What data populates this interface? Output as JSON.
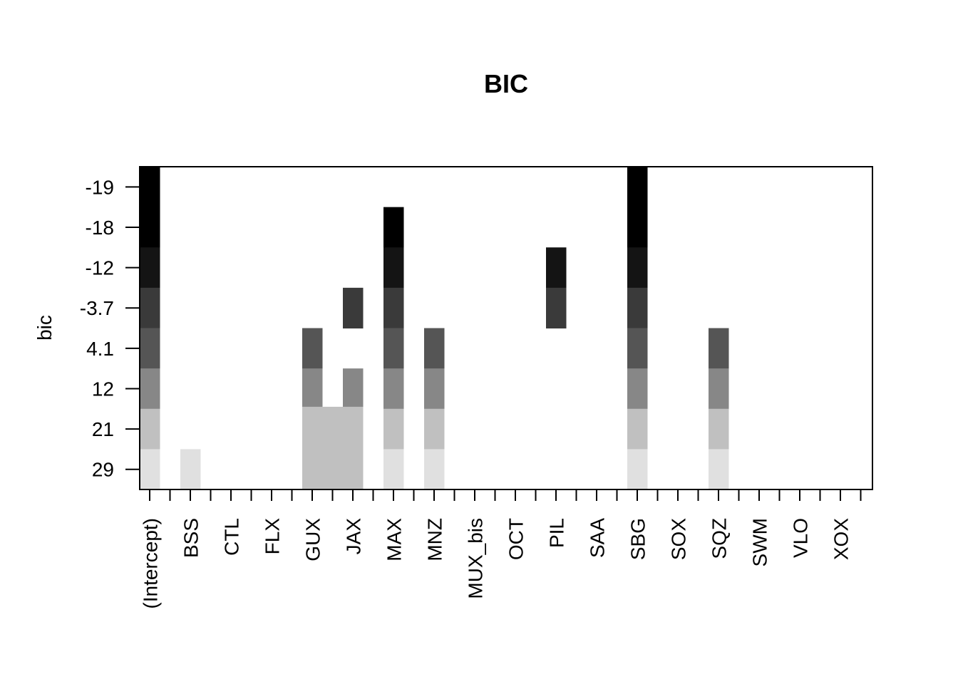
{
  "chart_data": {
    "type": "heatmap",
    "title": "BIC",
    "ylabel": "bic",
    "xlabel": "",
    "columns": [
      "(Intercept)",
      "BSS",
      "CTL",
      "FLX",
      "GUX",
      "JAX",
      "MAX",
      "MNZ",
      "MUX_bis",
      "OCT",
      "PIL",
      "SAA",
      "SBG",
      "SOX",
      "SQZ",
      "SWM",
      "VLO",
      "XOX"
    ],
    "rows": [
      "-19",
      "-18",
      "-12",
      "-3.7",
      "4.1",
      "12",
      "21",
      "29"
    ],
    "row_values": [
      -19,
      -18,
      -12,
      -3.7,
      4.1,
      12,
      21,
      29
    ],
    "cell_colors": [
      "#000000",
      "#000000",
      "#141414",
      "#3a3a3a",
      "#555555",
      "#878787",
      "#c0c0c0",
      "#e0e0e0"
    ],
    "cells": [
      {
        "column": "(Intercept)",
        "from_row": 0,
        "to_row": 7
      },
      {
        "column": "BSS",
        "from_row": 7,
        "to_row": 7
      },
      {
        "column": "GUX",
        "from_row": 4,
        "to_row": 7
      },
      {
        "column": "JAX",
        "from_row": 3,
        "to_row": 3
      },
      {
        "column": "JAX",
        "from_row": 5,
        "to_row": 7
      },
      {
        "column": "MAX",
        "from_row": 1,
        "to_row": 7
      },
      {
        "column": "MNZ",
        "from_row": 4,
        "to_row": 7
      },
      {
        "column": "PIL",
        "from_row": 2,
        "to_row": 3
      },
      {
        "column": "SBG",
        "from_row": 0,
        "to_row": 7
      },
      {
        "column": "SQZ",
        "from_row": 4,
        "to_row": 7
      }
    ],
    "ragged_fills": [
      {
        "columns": [
          "GUX",
          "JAX"
        ],
        "value": 0.9,
        "color": "#c0c0c0"
      }
    ],
    "grid": false,
    "legend": "none"
  }
}
